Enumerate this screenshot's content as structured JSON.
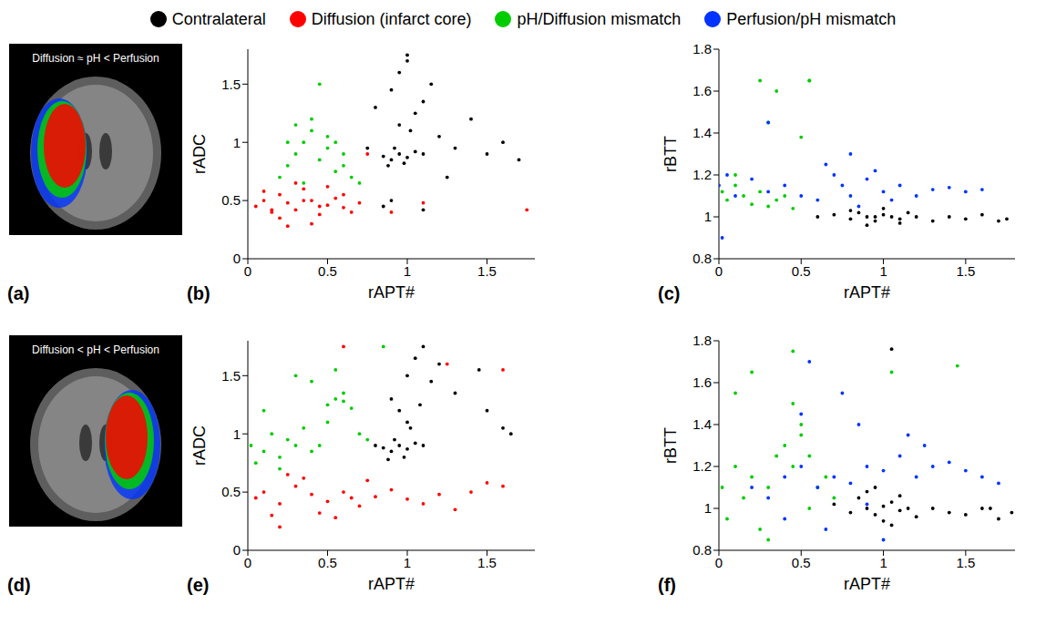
{
  "figure_legend": [
    {
      "name": "Contralateral",
      "color": "#000000"
    },
    {
      "name": "Diffusion (infarct core)",
      "color": "#ff0000"
    },
    {
      "name": "pH/Diffusion mismatch",
      "color": "#00cc00"
    },
    {
      "name": "Perfusion/pH mismatch",
      "color": "#0033ff"
    }
  ],
  "images": [
    {
      "panel": "(a)",
      "text": "Diffusion ≈ pH < Perfusion"
    },
    {
      "panel": "(d)",
      "text": "Diffusion < pH < Perfusion"
    }
  ],
  "chart_data": [
    {
      "type": "scatter",
      "panel": "(b)",
      "x_label": "rAPT#",
      "y_label": "rADC",
      "xlim": [
        0,
        1.8
      ],
      "xticks": [
        0,
        0.5,
        1,
        1.5
      ],
      "ylim": [
        0,
        1.8
      ],
      "yticks": [
        0,
        0.5,
        1,
        1.5
      ],
      "series": [
        {
          "name": "Contralateral",
          "color": "#000000",
          "x": [
            0.85,
            0.9,
            0.95,
            1.0,
            1.05,
            0.92,
            0.98,
            1.1,
            0.88,
            1.02,
            0.8,
            1.15,
            0.95,
            1.0,
            1.05,
            0.9,
            1.2,
            1.3,
            0.85,
            1.1,
            1.5,
            1.6,
            1.7,
            1.4,
            0.9,
            1.0,
            1.1,
            0.95,
            1.25,
            0.75
          ],
          "y": [
            0.88,
            0.85,
            0.9,
            0.87,
            0.92,
            0.95,
            0.82,
            0.9,
            0.8,
            1.1,
            1.3,
            1.5,
            1.6,
            1.7,
            1.25,
            1.45,
            1.05,
            0.95,
            0.45,
            0.42,
            0.9,
            1.0,
            0.85,
            1.2,
            0.5,
            1.75,
            1.35,
            1.15,
            0.7,
            0.95
          ]
        },
        {
          "name": "Diffusion (infarct core)",
          "color": "#ff0000",
          "x": [
            0.05,
            0.1,
            0.15,
            0.2,
            0.25,
            0.3,
            0.35,
            0.4,
            0.45,
            0.5,
            0.55,
            0.6,
            0.65,
            0.7,
            0.2,
            0.3,
            0.4,
            0.1,
            0.5,
            0.25,
            0.35,
            0.6,
            0.45,
            0.15,
            1.1,
            1.75,
            0.9,
            0.75
          ],
          "y": [
            0.45,
            0.5,
            0.4,
            0.55,
            0.48,
            0.42,
            0.6,
            0.5,
            0.38,
            0.46,
            0.52,
            0.44,
            0.4,
            0.48,
            0.35,
            0.65,
            0.3,
            0.58,
            0.62,
            0.28,
            0.5,
            0.55,
            0.45,
            0.42,
            0.48,
            0.42,
            0.4,
            0.9
          ]
        },
        {
          "name": "pH/Diffusion mismatch",
          "color": "#00cc00",
          "x": [
            0.2,
            0.25,
            0.3,
            0.35,
            0.4,
            0.45,
            0.5,
            0.55,
            0.6,
            0.65,
            0.7,
            0.3,
            0.4,
            0.5,
            0.45,
            0.35,
            0.6,
            0.55,
            0.25
          ],
          "y": [
            0.7,
            0.8,
            0.9,
            1.0,
            1.1,
            0.85,
            0.95,
            0.75,
            0.8,
            0.7,
            0.65,
            1.15,
            1.2,
            1.05,
            1.5,
            0.65,
            0.9,
            1.0,
            1.0
          ]
        }
      ]
    },
    {
      "type": "scatter",
      "panel": "(c)",
      "x_label": "rAPT#",
      "y_label": "rBTT",
      "xlim": [
        0,
        1.8
      ],
      "xticks": [
        0,
        0.5,
        1,
        1.5
      ],
      "ylim": [
        0.8,
        1.8
      ],
      "yticks": [
        0.8,
        1,
        1.2,
        1.4,
        1.6,
        1.8
      ],
      "series": [
        {
          "name": "Contralateral",
          "color": "#000000",
          "x": [
            0.6,
            0.7,
            0.8,
            0.85,
            0.9,
            0.95,
            1.0,
            1.05,
            1.1,
            1.15,
            1.2,
            1.3,
            1.4,
            1.5,
            1.6,
            1.7,
            1.75,
            0.9,
            1.0,
            0.8,
            1.1,
            0.95
          ],
          "y": [
            1.0,
            1.01,
            0.99,
            1.02,
            1.0,
            0.98,
            1.01,
            1.0,
            0.99,
            1.02,
            1.0,
            0.98,
            1.0,
            0.99,
            1.01,
            0.98,
            0.99,
            0.96,
            1.04,
            1.03,
            0.97,
            1.0
          ]
        },
        {
          "name": "pH/Diffusion mismatch",
          "color": "#00cc00",
          "x": [
            0.02,
            0.05,
            0.1,
            0.15,
            0.2,
            0.25,
            0.3,
            0.35,
            0.4,
            0.45,
            0.5,
            0.55,
            0.25,
            0.35,
            0.55,
            0.1,
            0.3
          ],
          "y": [
            1.12,
            1.08,
            1.15,
            1.1,
            1.06,
            1.12,
            1.05,
            1.08,
            1.1,
            1.04,
            1.38,
            1.65,
            1.65,
            1.6,
            1.65,
            1.2,
            1.45
          ]
        },
        {
          "name": "Perfusion/pH mismatch",
          "color": "#0033ff",
          "x": [
            0,
            0.05,
            0.1,
            0.2,
            0.3,
            0.4,
            0.5,
            0.6,
            0.7,
            0.75,
            0.8,
            0.85,
            0.9,
            0.95,
            1.0,
            1.1,
            1.2,
            1.3,
            1.4,
            1.5,
            1.6,
            0.3,
            0.02,
            0.65,
            0.8,
            1.05
          ],
          "y": [
            1.15,
            1.2,
            1.1,
            1.18,
            1.12,
            1.15,
            1.1,
            1.08,
            1.2,
            1.15,
            1.1,
            1.05,
            1.18,
            1.22,
            1.12,
            1.15,
            1.1,
            1.13,
            1.14,
            1.12,
            1.13,
            1.45,
            0.9,
            1.25,
            1.3,
            1.08
          ]
        }
      ]
    },
    {
      "type": "scatter",
      "panel": "(e)",
      "x_label": "rAPT#",
      "y_label": "rADC",
      "xlim": [
        0,
        1.8
      ],
      "xticks": [
        0,
        0.5,
        1,
        1.5
      ],
      "ylim": [
        0,
        1.8
      ],
      "yticks": [
        0,
        0.5,
        1,
        1.5
      ],
      "series": [
        {
          "name": "Contralateral",
          "color": "#000000",
          "x": [
            0.85,
            0.9,
            0.95,
            1.0,
            1.05,
            0.92,
            0.98,
            1.1,
            0.88,
            1.02,
            0.9,
            1.0,
            1.05,
            1.1,
            1.15,
            1.2,
            0.95,
            1.0,
            1.3,
            1.5,
            1.6,
            1.65,
            1.45,
            0.8,
            1.08
          ],
          "y": [
            0.88,
            0.85,
            0.9,
            0.87,
            0.92,
            0.95,
            0.8,
            0.9,
            0.78,
            1.05,
            1.3,
            1.5,
            1.65,
            1.75,
            1.45,
            1.6,
            1.2,
            1.1,
            1.35,
            1.2,
            1.05,
            1.0,
            1.55,
            0.9,
            1.25
          ]
        },
        {
          "name": "Diffusion (infarct core)",
          "color": "#ff0000",
          "x": [
            0.05,
            0.1,
            0.2,
            0.3,
            0.4,
            0.5,
            0.6,
            0.7,
            0.8,
            0.9,
            1.0,
            1.1,
            1.2,
            1.3,
            1.4,
            1.5,
            1.6,
            0.15,
            0.35,
            0.55,
            0.75,
            0.25,
            0.45,
            0.65,
            0.6,
            1.25,
            1.6,
            0.2
          ],
          "y": [
            0.45,
            0.5,
            0.4,
            0.55,
            0.48,
            0.42,
            0.5,
            0.38,
            0.46,
            0.52,
            0.44,
            0.4,
            0.48,
            0.35,
            0.5,
            0.58,
            0.55,
            0.3,
            0.62,
            0.28,
            0.6,
            0.65,
            0.32,
            0.45,
            1.75,
            1.6,
            1.55,
            0.2
          ]
        },
        {
          "name": "pH/Diffusion mismatch",
          "color": "#00cc00",
          "x": [
            0.02,
            0.05,
            0.1,
            0.15,
            0.2,
            0.25,
            0.3,
            0.35,
            0.4,
            0.45,
            0.5,
            0.55,
            0.6,
            0.65,
            0.7,
            0.75,
            0.5,
            0.55,
            0.6,
            0.3,
            0.85,
            0.1,
            0.2,
            0.4
          ],
          "y": [
            0.9,
            0.75,
            0.85,
            1.0,
            0.8,
            0.95,
            0.9,
            1.05,
            0.85,
            0.9,
            1.25,
            1.3,
            1.28,
            1.22,
            1.0,
            0.95,
            1.1,
            1.55,
            1.35,
            1.5,
            1.75,
            1.2,
            0.7,
            1.45
          ]
        }
      ]
    },
    {
      "type": "scatter",
      "panel": "(f)",
      "x_label": "rAPT#",
      "y_label": "rBTT",
      "xlim": [
        0,
        1.8
      ],
      "xticks": [
        0,
        0.5,
        1,
        1.5
      ],
      "ylim": [
        0.8,
        1.8
      ],
      "yticks": [
        0.8,
        1,
        1.2,
        1.4,
        1.6,
        1.8
      ],
      "series": [
        {
          "name": "Contralateral",
          "color": "#000000",
          "x": [
            0.7,
            0.8,
            0.85,
            0.9,
            0.95,
            1.0,
            1.05,
            1.1,
            1.15,
            1.2,
            1.3,
            1.4,
            1.5,
            1.6,
            1.7,
            0.9,
            1.0,
            1.1,
            0.95,
            1.05,
            1.78,
            1.65,
            1.05
          ],
          "y": [
            1.02,
            0.98,
            1.05,
            1.0,
            0.97,
            1.01,
            1.03,
            0.99,
            1.0,
            0.96,
            1.0,
            0.98,
            0.97,
            1.0,
            0.95,
            1.08,
            0.94,
            1.06,
            1.1,
            0.92,
            0.98,
            1.0,
            1.76
          ]
        },
        {
          "name": "pH/Diffusion mismatch",
          "color": "#00cc00",
          "x": [
            0.02,
            0.05,
            0.1,
            0.15,
            0.2,
            0.25,
            0.3,
            0.35,
            0.4,
            0.45,
            0.5,
            0.55,
            0.6,
            0.65,
            0.7,
            0.45,
            0.5,
            0.2,
            0.45,
            1.05,
            1.45,
            0.1,
            0.3,
            0.55
          ],
          "y": [
            1.1,
            0.95,
            1.2,
            1.05,
            1.15,
            0.9,
            1.1,
            1.25,
            1.3,
            1.2,
            1.35,
            1.25,
            1.1,
            1.15,
            1.05,
            1.5,
            1.4,
            1.65,
            1.75,
            1.65,
            1.68,
            1.55,
            0.85,
            1.0
          ]
        },
        {
          "name": "Perfusion/pH mismatch",
          "color": "#0033ff",
          "x": [
            0.2,
            0.3,
            0.4,
            0.5,
            0.6,
            0.7,
            0.8,
            0.9,
            1.0,
            1.1,
            1.2,
            1.3,
            1.4,
            1.5,
            1.6,
            1.7,
            0.55,
            0.75,
            0.85,
            0.65,
            1.0,
            1.25,
            0.5,
            0.4,
            0.9,
            1.15
          ],
          "y": [
            1.1,
            1.05,
            1.15,
            1.2,
            1.1,
            1.15,
            1.12,
            1.2,
            1.18,
            1.25,
            1.15,
            1.2,
            1.22,
            1.18,
            1.15,
            1.12,
            1.7,
            1.55,
            1.4,
            0.9,
            0.85,
            1.3,
            1.45,
            0.95,
            1.02,
            1.35
          ]
        }
      ]
    }
  ]
}
